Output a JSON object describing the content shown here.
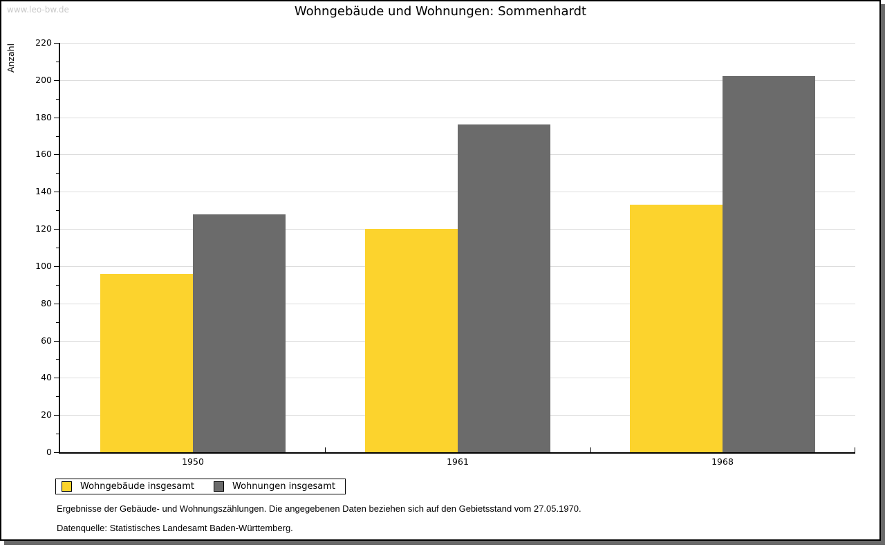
{
  "watermark": "www.leo-bw.de",
  "title": "Wohngebäude und Wohnungen: Sommenhardt",
  "chart_data": {
    "type": "bar",
    "title": "Wohngebäude und Wohnungen: Sommenhardt",
    "xlabel": "",
    "ylabel": "Anzahl",
    "categories": [
      "1950",
      "1961",
      "1968"
    ],
    "series": [
      {
        "name": "Wohngebäude insgesamt",
        "color": "#FCD32D",
        "values": [
          96,
          120,
          133
        ]
      },
      {
        "name": "Wohnungen insgesamt",
        "color": "#6B6B6B",
        "values": [
          128,
          176,
          202
        ]
      }
    ],
    "ylim": [
      0,
      220
    ],
    "yticks": [
      0,
      20,
      40,
      60,
      80,
      100,
      120,
      140,
      160,
      180,
      200,
      220
    ],
    "ytick_major": 20,
    "ytick_minor": 10,
    "grid": "horizontal",
    "gridline_color": "#DCDCDC",
    "legend_position": "bottom-left"
  },
  "footnotes": [
    "Ergebnisse der Gebäude- und Wohnungszählungen. Die angegebenen Daten beziehen sich auf den Gebietsstand vom 27.05.1970.",
    "Datenquelle: Statistisches Landesamt Baden-Württemberg."
  ]
}
